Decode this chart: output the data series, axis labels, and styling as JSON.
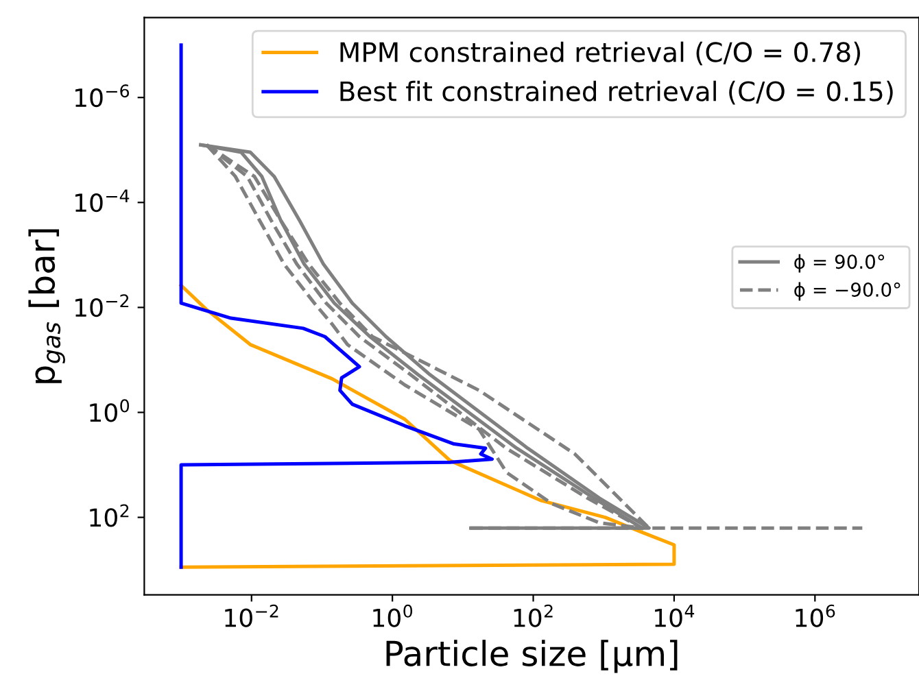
{
  "chart_data": {
    "type": "line",
    "xlabel": "Particle size [μm]",
    "ylabel": "p$_{gas}$ [bar]",
    "log": "xy",
    "xlim": [
      0.0003,
      30000000
    ],
    "ylim": [
      3000,
      3e-08
    ],
    "xticks": [
      {
        "value": 0.01,
        "label": "10$^{−2}$"
      },
      {
        "value": 1,
        "label": "10$^{0}$"
      },
      {
        "value": 100,
        "label": "10$^{2}$"
      },
      {
        "value": 10000,
        "label": "10$^{4}$"
      },
      {
        "value": 1000000,
        "label": "10$^{6}$"
      }
    ],
    "yticks": [
      {
        "value": 1e-06,
        "label": "10$^{−6}$"
      },
      {
        "value": 0.0001,
        "label": "10$^{−4}$"
      },
      {
        "value": 0.01,
        "label": "10$^{−2}$"
      },
      {
        "value": 1,
        "label": "10$^{0}$"
      },
      {
        "value": 100,
        "label": "10$^{2}$"
      }
    ],
    "grid": false,
    "legend": [
      "top right",
      "right"
    ],
    "series": [
      {
        "name": "MPM constrained retrieval (C/O = 0.78)",
        "color": "#ffa500",
        "line_style": "solid",
        "x": [
          0.001,
          0.0023,
          0.0096,
          0.14,
          1.5,
          6.6,
          130,
          1050,
          3600,
          10000,
          10000,
          0.001
        ],
        "values": [
          0.0038,
          0.011,
          0.051,
          0.23,
          1.35,
          8.3,
          48,
          100,
          195,
          335,
          780,
          890
        ]
      },
      {
        "name": "Best fit constrained retrieval (C/O = 0.15)",
        "color": "#0000ff",
        "line_style": "solid",
        "x": [
          0.001,
          0.001,
          0.0051,
          0.054,
          0.11,
          0.34,
          0.19,
          0.18,
          0.27,
          1.5,
          7.5,
          21,
          18,
          26,
          6.6,
          0.001,
          0.001
        ],
        "values": [
          1e-07,
          0.0083,
          0.016,
          0.025,
          0.036,
          0.135,
          0.22,
          0.38,
          0.7,
          1.8,
          4,
          4.8,
          6.2,
          7.8,
          8.9,
          10,
          890
        ]
      },
      {
        "name": "ϕ = 90.0°",
        "color": "#808080",
        "line_style": "solid",
        "x": [
          0.0019,
          0.0096,
          0.021,
          0.048,
          0.105,
          0.27,
          0.81,
          3.4,
          83,
          870,
          4400,
          13
        ],
        "values": [
          8e-06,
          1.1e-05,
          3.2e-05,
          0.00022,
          0.0015,
          0.0083,
          0.036,
          0.19,
          4.8,
          43,
          160,
          160
        ]
      },
      {
        "color": "#808080",
        "line_style": "solid",
        "x": [
          0.0019,
          0.0071,
          0.014,
          0.026,
          0.056,
          0.15,
          0.48,
          2.3,
          58,
          730,
          3500
        ],
        "values": [
          8e-06,
          1.1e-05,
          3.2e-05,
          0.00022,
          0.0015,
          0.0083,
          0.036,
          0.19,
          4.8,
          43,
          160
        ]
      },
      {
        "name": "ϕ = −90.0°",
        "color": "#808080",
        "line_style": "dashed",
        "x": [
          0.0023,
          0.0059,
          0.013,
          0.029,
          0.078,
          0.14,
          0.23,
          1.5,
          17,
          42,
          185,
          870,
          3600,
          12
        ],
        "values": [
          8e-06,
          3.2e-05,
          0.00022,
          0.0015,
          0.0083,
          0.021,
          0.051,
          0.3,
          2.1,
          14,
          55,
          127,
          160,
          160
        ]
      },
      {
        "color": "#808080",
        "line_style": "dashed",
        "x": [
          0.0023,
          0.0087,
          0.019,
          0.044,
          0.115,
          0.34,
          1.8,
          41,
          590,
          3500
        ],
        "values": [
          8e-06,
          3.2e-05,
          0.00022,
          0.0015,
          0.0083,
          0.036,
          0.19,
          4.8,
          43,
          160
        ]
      },
      {
        "color": "#808080",
        "line_style": "dashed",
        "x": [
          0.0023,
          0.011,
          0.026,
          0.065,
          0.18,
          0.52,
          17,
          390,
          4400,
          4700000
        ],
        "values": [
          8e-06,
          3.2e-05,
          0.00022,
          0.0015,
          0.0083,
          0.036,
          0.38,
          6.2,
          160,
          160
        ]
      }
    ]
  }
}
